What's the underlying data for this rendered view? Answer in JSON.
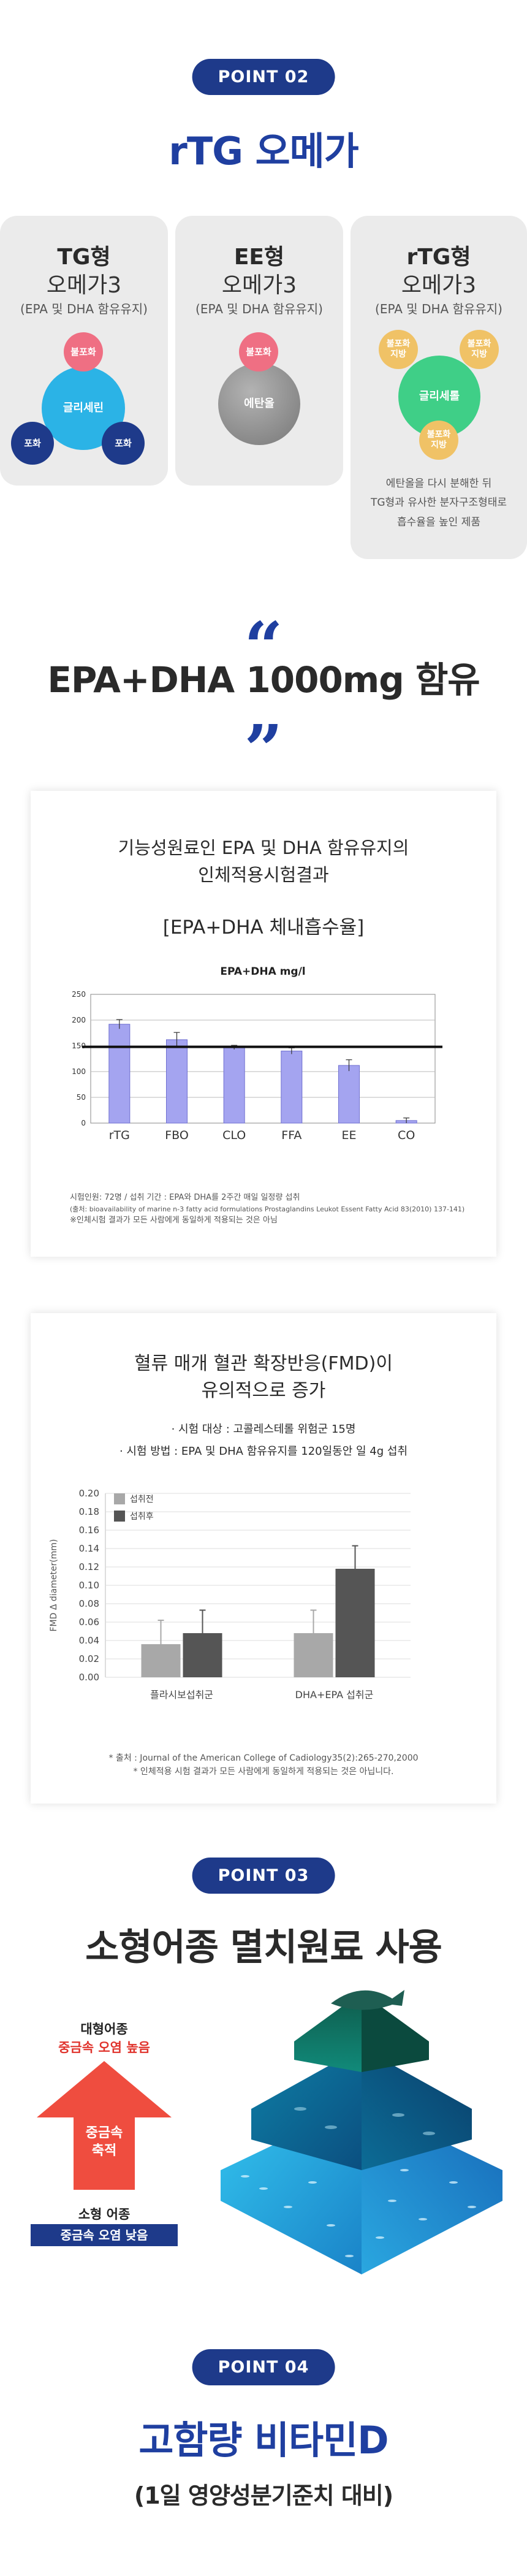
{
  "point02": {
    "label": "POINT 02",
    "title": "rTG 오메가"
  },
  "cards": [
    {
      "t1": "TG형",
      "t2": "오메가3",
      "t3": "(EPA 및 DHA 함유유지)"
    },
    {
      "t1": "EE형",
      "t2": "오메가3",
      "t3": "(EPA 및 DHA 함유유지)"
    },
    {
      "t1": "rTG형",
      "t2": "오메가3",
      "t3": "(EPA 및 DHA 함유유지)"
    }
  ],
  "tg_diagram": {
    "top": "불포화",
    "center": "글리세린",
    "left": "포화",
    "right": "포화"
  },
  "ee_diagram": {
    "top": "불포화",
    "center": "에탄올"
  },
  "rtg_diagram": {
    "left": "불포화\n지방",
    "right": "불포화\n지방",
    "center": "글리세롤",
    "bottom": "불포화\n지방"
  },
  "rtg_desc": [
    "에탄올을 다시 분해한 뒤",
    "TG형과 유사한 분자구조형태로",
    "흡수율을 높인 제품"
  ],
  "headline": {
    "open_quote": "“",
    "text": "EPA+DHA 1000mg 함유",
    "close_quote": "”"
  },
  "panel1": {
    "title_line1": "기능성원료인 EPA 및 DHA 함유유지의",
    "title_line2": "인체적용시험결과",
    "subtitle": "[EPA+DHA 체내흡수율]"
  },
  "chart1": {
    "type": "bar",
    "title": "EPA+DHA mg/l",
    "categories": [
      "rTG",
      "FBO",
      "CLO",
      "FFA",
      "EE",
      "CO"
    ],
    "values": [
      192,
      162,
      147,
      140,
      112,
      5
    ],
    "errors": [
      9,
      14,
      4,
      6,
      11,
      5
    ],
    "reference_line": 148,
    "ylim": [
      0,
      250
    ],
    "yticks": [
      0,
      50,
      100,
      150,
      200,
      250
    ],
    "color": "#a4a4f0",
    "grid": true
  },
  "panel1_notes": [
    "시험인원: 72명 / 섭취 기간 : EPA와 DHA를 2주간 매일 일정량 섭취",
    "(출처: bioavailability of marine n-3 fatty acid formulations Prostaglandins Leukot Essent Fatty Acid 83(2010) 137-141)",
    "※인체시험 결과가 모든 사람에게 동일하게 적용되는 것은 아님"
  ],
  "panel2": {
    "title_line1": "혈류 매개 혈관 확장반응(FMD)이",
    "title_line2": "유의적으로 증가",
    "bullet1": "· 시험 대상 : 고콜레스테롤 위험군 15명",
    "bullet2": "· 시험 방법 : EPA 및 DHA 함유유지를 120일동안 일 4g 섭취"
  },
  "chart2": {
    "type": "bar",
    "ylabel": "FMD Δ diameter(mm)",
    "categories": [
      "플라시보섭취군",
      "DHA+EPA 섭취군"
    ],
    "series": [
      {
        "name": "섭취전",
        "values": [
          0.036,
          0.048
        ],
        "errors": [
          0.026,
          0.025
        ],
        "color": "#a8a8a8"
      },
      {
        "name": "섭취후",
        "values": [
          0.048,
          0.118
        ],
        "errors": [
          0.025,
          0.025
        ],
        "color": "#555555"
      }
    ],
    "ylim": [
      0,
      0.2
    ],
    "yticks": [
      "0.20",
      "0.18",
      "0.16",
      "0.14",
      "0.12",
      "0.10",
      "0.08",
      "0.06",
      "0.04",
      "0.02",
      "0.00"
    ],
    "legend_placement": "top-left"
  },
  "panel2_notes": [
    "* 출처 : Journal of the American College of Cadiology35(2):265-270,2000",
    "* 인체적용 시험 결과가 모든 사람에게 동일하게 적용되는 것은 아닙니다."
  ],
  "point03": {
    "label": "POINT 03",
    "title": "소형어종 멸치원료 사용"
  },
  "pyramid": {
    "top_label1": "대형어종",
    "top_label2": "중금속 오염 높음",
    "arrow_label": "중금속\n축적",
    "bottom_label1": "소형 어종",
    "bottom_label2": "중금속 오염 낮음"
  },
  "point04": {
    "label": "POINT 04",
    "title": "고함량 비타민D",
    "subtitle": "(1일 영양성분기준치 대비)"
  },
  "colors": {
    "navy": "#1e3a8a",
    "blue": "#1f3fa0",
    "red": "#e0342d",
    "pink": "#ef6f83",
    "cyan": "#2bb3e6",
    "green": "#3fcf87",
    "yellow": "#f0c266"
  }
}
